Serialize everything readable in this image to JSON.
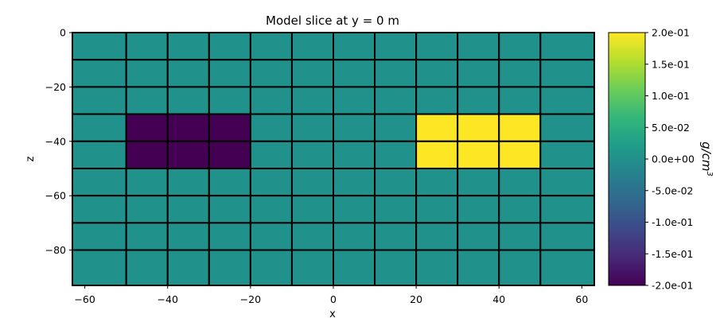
{
  "chart_data": {
    "type": "heatmap",
    "title": "Model slice at y = 0 m",
    "xlabel": "x",
    "ylabel": "z",
    "xlim": [
      -63,
      63
    ],
    "ylim": [
      -93,
      0
    ],
    "xticks": [
      -60,
      -40,
      -20,
      0,
      20,
      40,
      60
    ],
    "xtick_labels": [
      "−60",
      "−40",
      "−20",
      "0",
      "20",
      "40",
      "60"
    ],
    "yticks": [
      0,
      -20,
      -40,
      -60,
      -80
    ],
    "ytick_labels": [
      "0",
      "−20",
      "−40",
      "−60",
      "−80"
    ],
    "x_edges": [
      -63,
      -50,
      -40,
      -30,
      -20,
      -10,
      0,
      10,
      20,
      30,
      40,
      50,
      63
    ],
    "z_edges": [
      0,
      -10,
      -20,
      -30,
      -40,
      -50,
      -60,
      -70,
      -80,
      -93
    ],
    "values": [
      [
        0,
        0,
        0,
        0,
        0,
        0,
        0,
        0,
        0,
        0,
        0,
        0
      ],
      [
        0,
        0,
        0,
        0,
        0,
        0,
        0,
        0,
        0,
        0,
        0,
        0
      ],
      [
        0,
        0,
        0,
        0,
        0,
        0,
        0,
        0,
        0,
        0,
        0,
        0
      ],
      [
        0,
        -0.2,
        -0.2,
        -0.2,
        0,
        0,
        0,
        0,
        0.2,
        0.2,
        0.2,
        0
      ],
      [
        0,
        -0.2,
        -0.2,
        -0.2,
        0,
        0,
        0,
        0,
        0.2,
        0.2,
        0.2,
        0
      ],
      [
        0,
        0,
        0,
        0,
        0,
        0,
        0,
        0,
        0,
        0,
        0,
        0
      ],
      [
        0,
        0,
        0,
        0,
        0,
        0,
        0,
        0,
        0,
        0,
        0,
        0
      ],
      [
        0,
        0,
        0,
        0,
        0,
        0,
        0,
        0,
        0,
        0,
        0,
        0
      ],
      [
        0,
        0,
        0,
        0,
        0,
        0,
        0,
        0,
        0,
        0,
        0,
        0
      ]
    ],
    "colorbar": {
      "label_base": "g/cm",
      "label_exp": "3",
      "range": [
        -0.2,
        0.2
      ],
      "ticks": [
        0.2,
        0.15,
        0.1,
        0.05,
        0,
        -0.05,
        -0.1,
        -0.15,
        -0.2
      ],
      "tick_labels": [
        "2.0e-01",
        "1.5e-01",
        "1.0e-01",
        "5.0e-02",
        "0.0e+00",
        "-5.0e-02",
        "-1.0e-01",
        "-1.5e-01",
        "-2.0e-01"
      ]
    },
    "colors": {
      "low": "#440154",
      "mid": "#21918c",
      "high": "#fde725"
    },
    "colormap_stops": [
      "#440154",
      "#482878",
      "#3e4989",
      "#31688e",
      "#26828e",
      "#1f9e89",
      "#35b779",
      "#6ece58",
      "#b5de2b",
      "#fde725"
    ],
    "grid_lines": true
  }
}
